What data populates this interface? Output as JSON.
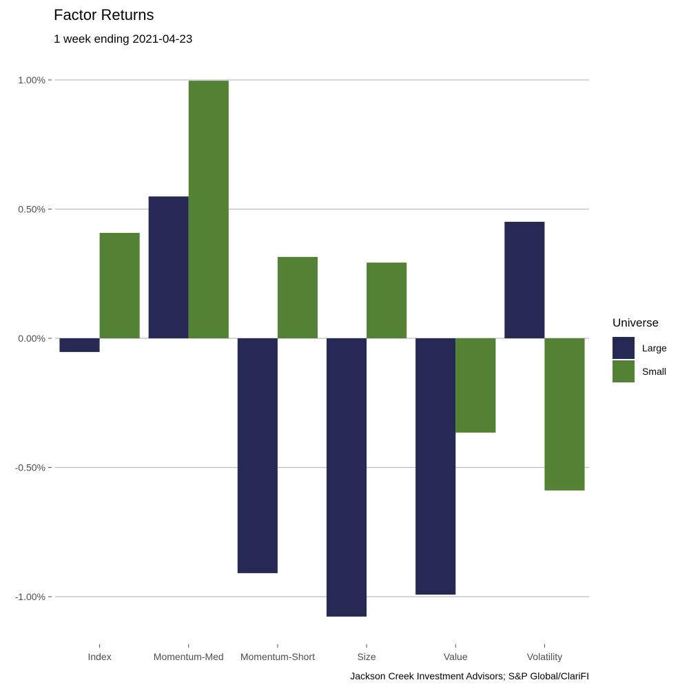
{
  "chart_data": {
    "type": "bar",
    "title": "Factor Returns",
    "subtitle": "1 week ending 2021-04-23",
    "caption": "Jackson Creek Investment Advisors; S&P Global/ClariFI",
    "xlabel": "",
    "ylabel": "",
    "categories": [
      "Index",
      "Momentum-Med",
      "Momentum-Short",
      "Size",
      "Value",
      "Volatility"
    ],
    "series": [
      {
        "name": "Large",
        "color": "#262953",
        "values": [
          -0.053,
          0.549,
          -0.909,
          -1.077,
          -0.992,
          0.451
        ]
      },
      {
        "name": "Small",
        "color": "#538234",
        "values": [
          0.408,
          0.997,
          0.315,
          0.293,
          -0.365,
          -0.589
        ]
      }
    ],
    "yunit": "%",
    "ylim": [
      -1.15,
      1.05
    ],
    "yticks": [
      -1.0,
      -0.5,
      0.0,
      0.5,
      1.0
    ],
    "ytick_labels": [
      "-1.00%",
      "-0.50%",
      "0.00%",
      "0.50%",
      "1.00%"
    ],
    "grid": "horizontal major",
    "legend": {
      "title": "Universe",
      "position": "right",
      "items": [
        "Large",
        "Small"
      ]
    }
  }
}
